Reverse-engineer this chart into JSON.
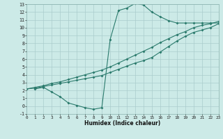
{
  "xlabel": "Humidex (Indice chaleur)",
  "bg_color": "#cceae7",
  "line_color": "#2a7a6c",
  "grid_color": "#aacccc",
  "xlim": [
    0,
    23
  ],
  "ylim": [
    -1,
    13
  ],
  "xticks": [
    0,
    1,
    2,
    3,
    4,
    5,
    6,
    7,
    8,
    9,
    10,
    11,
    12,
    13,
    14,
    15,
    16,
    17,
    18,
    19,
    20,
    21,
    22,
    23
  ],
  "yticks": [
    -1,
    0,
    1,
    2,
    3,
    4,
    5,
    6,
    7,
    8,
    9,
    10,
    11,
    12,
    13
  ],
  "curve1_x": [
    1,
    2,
    3,
    4,
    5,
    6,
    7,
    8,
    9,
    10,
    11,
    12,
    13,
    14,
    15,
    16,
    17,
    18,
    19,
    20,
    21,
    22,
    23
  ],
  "curve1_y": [
    2.2,
    2.4,
    1.8,
    1.2,
    0.4,
    0.1,
    -0.2,
    -0.4,
    -0.2,
    8.5,
    12.2,
    12.5,
    13.1,
    12.9,
    12.0,
    11.4,
    10.9,
    10.6,
    10.6,
    10.6,
    10.6,
    10.6,
    10.6
  ],
  "curve2_x": [
    0,
    1,
    2,
    3,
    4,
    5,
    6,
    7,
    8,
    9,
    10,
    11,
    12,
    13,
    14,
    15,
    16,
    17,
    18,
    19,
    20,
    21,
    22,
    23
  ],
  "curve2_y": [
    2.2,
    2.4,
    2.6,
    2.9,
    3.1,
    3.4,
    3.7,
    4.0,
    4.3,
    4.6,
    5.0,
    5.5,
    6.0,
    6.5,
    7.0,
    7.5,
    8.1,
    8.6,
    9.1,
    9.5,
    10.0,
    10.3,
    10.5,
    10.8
  ],
  "curve3_x": [
    0,
    1,
    2,
    3,
    4,
    5,
    6,
    7,
    8,
    9,
    10,
    11,
    12,
    13,
    14,
    15,
    16,
    17,
    18,
    19,
    20,
    21,
    22,
    23
  ],
  "curve3_y": [
    2.2,
    2.3,
    2.5,
    2.7,
    2.9,
    3.1,
    3.3,
    3.5,
    3.7,
    3.9,
    4.3,
    4.7,
    5.1,
    5.5,
    5.8,
    6.2,
    6.9,
    7.6,
    8.3,
    8.9,
    9.4,
    9.7,
    10.0,
    10.5
  ]
}
